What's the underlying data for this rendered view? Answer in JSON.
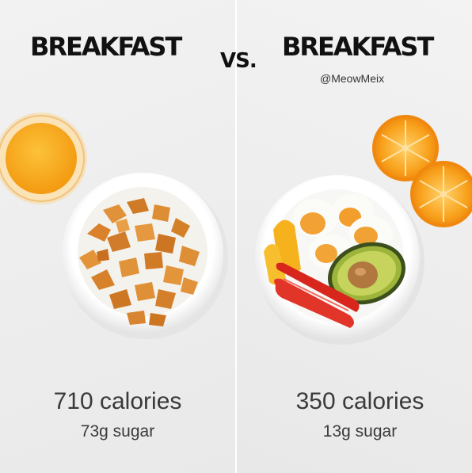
{
  "left": {
    "title": "BREAKFAST",
    "calories": "710 calories",
    "sugar": "73g sugar"
  },
  "right": {
    "title": "BREAKFAST",
    "handle": "@MeowMeix",
    "calories": "350 calories",
    "sugar": "13g sugar"
  },
  "vs_label": "VS.",
  "colors": {
    "background": "#ececec",
    "text": "#111111",
    "orange_juice": "#f7a21b",
    "cornflakes": "#d9822b",
    "egg_yolk": "#f2a234",
    "avocado": "#6e8f2a",
    "bell_pepper_red": "#d9261c",
    "bell_pepper_yellow": "#f5b21c",
    "orange": "#f7941d"
  }
}
